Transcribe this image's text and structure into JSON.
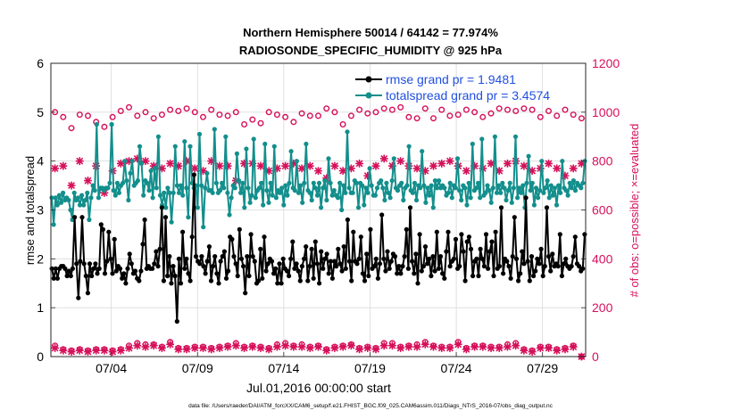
{
  "chart_data": {
    "type": "line",
    "title_line1": "Northern Hemisphere 50014 / 64142 = 77.974%",
    "title_line2": "RADIOSONDE_SPECIFIC_HUMIDITY @ 925 hPa",
    "xlabel": "Jul.01,2016 00:00:00 start",
    "ylabel_left": "rmse and totalspread",
    "ylabel_right": "# of obs: o=possible; ×=evaluated",
    "footer": "data file: /Users/raeder/DAI/ATM_forcXX/CAM6_setup/f.e21.FHIST_BGC.f09_025.CAM6assim.011/Diags_NTrS_2016-07/obs_diag_output.nc",
    "x_ticks": [
      {
        "day": 3.5,
        "label": "07/04"
      },
      {
        "day": 8.5,
        "label": "07/09"
      },
      {
        "day": 13.5,
        "label": "07/14"
      },
      {
        "day": 18.5,
        "label": "07/19"
      },
      {
        "day": 23.5,
        "label": "07/24"
      },
      {
        "day": 28.5,
        "label": "07/29"
      }
    ],
    "xlim": [
      0,
      31
    ],
    "ylim_left": [
      0,
      6
    ],
    "ylim_right": [
      0,
      1200
    ],
    "left_ticks": [
      "0",
      "1",
      "2",
      "3",
      "4",
      "5",
      "6"
    ],
    "right_ticks": [
      "0",
      "200",
      "400",
      "600",
      "800",
      "1000",
      "1200"
    ],
    "left_tick_values": [
      0,
      1,
      2,
      3,
      4,
      5,
      6
    ],
    "right_tick_values": [
      0,
      200,
      400,
      600,
      800,
      1000,
      1200
    ],
    "colors": {
      "rmse": "#000000",
      "spread": "#138f8c",
      "obs": "#d6105a",
      "legend_text": "#1f4fe0"
    },
    "series": [
      {
        "name": "rmse",
        "label": "rmse grand pr = 1.9481",
        "values": [
          1.8,
          1.6,
          1.8,
          1.6,
          1.8,
          1.85,
          1.85,
          1.8,
          1.65,
          1.75,
          1.65,
          1.8,
          2.85,
          1.9,
          1.2,
          1.95,
          2.85,
          1.9,
          1.65,
          1.3,
          1.9,
          1.65,
          1.8,
          1.9,
          1.7,
          1.8,
          2.7,
          2.6,
          1.7,
          1.95,
          2.55,
          2.0,
          1.7,
          2.4,
          1.75,
          1.85,
          1.8,
          1.6,
          1.7,
          1.5,
          1.8,
          2.1,
          1.9,
          1.7,
          1.75,
          1.6,
          1.55,
          1.75,
          2.3,
          2.8,
          1.8,
          1.85,
          1.8,
          1.8,
          1.9,
          2.15,
          1.85,
          2.2,
          3.05,
          1.55,
          2.85,
          1.65,
          2.05,
          1.5,
          1.85,
          1.65,
          0.72,
          2.0,
          1.5,
          2.55,
          1.8,
          2.0,
          1.7,
          1.55,
          2.45,
          3.72,
          2.05,
          1.95,
          1.9,
          2.05,
          1.85,
          1.7,
          1.95,
          2.25,
          1.55,
          1.85,
          2.05,
          1.7,
          1.5,
          1.95,
          2.05,
          2.15,
          1.6,
          1.75,
          2.45,
          2.4,
          2.05,
          1.9,
          1.65,
          2.6,
          2.0,
          1.85,
          1.3,
          2.05,
          1.65,
          2.5,
          2.05,
          1.95,
          1.5,
          1.55,
          2.2,
          1.6,
          2.45,
          1.75,
          1.9,
          2.0,
          1.95,
          1.7,
          1.8,
          1.5,
          1.9,
          1.5,
          2.0,
          1.8,
          1.75,
          1.65,
          2.0,
          2.35,
          1.8,
          1.9,
          1.75,
          1.55,
          1.85,
          2.0,
          2.25,
          1.55,
          1.85,
          2.2,
          1.6,
          2.35,
          1.9,
          1.5,
          2.15,
          1.8,
          2.0,
          2.1,
          1.7,
          1.95,
          1.6,
          1.95,
          1.85,
          2.2,
          1.9,
          1.75,
          2.25,
          1.8,
          2.8,
          1.95,
          1.55,
          2.55,
          1.95,
          1.9,
          2.0,
          2.45,
          1.7,
          1.55,
          2.1,
          1.65,
          2.6,
          1.8,
          1.85,
          2.0,
          1.6,
          1.9,
          2.9,
          2.0,
          1.75,
          2.15,
          1.8,
          1.95,
          2.1,
          2.05,
          1.7,
          1.85,
          1.7,
          1.85,
          2.05,
          2.6,
          1.8,
          3.05,
          1.95,
          1.7,
          2.1,
          1.5,
          2.5,
          1.75,
          1.85,
          2.25,
          1.9,
          2.0,
          1.65,
          2.05,
          1.75,
          2.55,
          1.8,
          2.05,
          1.7,
          1.6,
          2.15,
          2.55,
          1.85,
          1.95,
          2.0,
          2.4,
          1.8,
          1.85,
          2.5,
          2.15,
          1.55,
          2.35,
          2.45,
          2.2,
          1.65,
          1.95,
          2.0,
          1.65,
          2.2,
          2.0,
          1.85,
          2.5,
          1.8,
          2.15,
          2.35,
          1.65,
          2.55,
          1.8,
          1.85,
          3.05,
          1.7,
          2.0,
          1.95,
          1.85,
          1.6,
          2.05,
          2.85,
          2.0,
          1.55,
          1.7,
          2.15,
          1.9,
          3.25,
          1.95,
          1.55,
          2.05,
          1.65,
          1.75,
          2.0,
          1.9,
          2.2,
          1.65,
          1.85,
          3.05,
          2.05,
          1.75,
          2.1,
          1.85,
          1.9,
          1.85,
          2.5,
          1.65,
          1.9,
          2.0,
          1.85,
          1.8,
          1.85,
          2.05,
          2.45,
          1.9,
          1.85,
          1.75,
          1.8,
          2.5
        ]
      },
      {
        "name": "totalspread",
        "label": "totalspread grand pr = 3.4574",
        "values": [
          3.25,
          2.7,
          3.25,
          3.1,
          3.3,
          3.15,
          3.35,
          3.2,
          3.25,
          3.2,
          3.0,
          2.8,
          3.35,
          3.2,
          3.25,
          3.1,
          3.3,
          3.1,
          3.2,
          3.35,
          2.8,
          3.25,
          3.5,
          3.4,
          4.75,
          3.25,
          3.45,
          3.45,
          3.4,
          3.45,
          3.45,
          3.55,
          4.75,
          3.4,
          3.3,
          3.55,
          3.35,
          3.5,
          3.55,
          4.0,
          3.6,
          3.2,
          3.75,
          4.0,
          3.5,
          3.55,
          3.6,
          4.3,
          3.95,
          3.3,
          3.6,
          3.55,
          3.4,
          3.8,
          3.25,
          3.85,
          3.45,
          4.5,
          3.3,
          3.1,
          3.35,
          3.05,
          3.45,
          3.35,
          2.75,
          3.35,
          4.3,
          3.5,
          3.35,
          3.5,
          3.3,
          4.4,
          3.45,
          2.85,
          4.3,
          3.55,
          3.45,
          3.5,
          3.05,
          4.55,
          3.5,
          2.65,
          3.45,
          3.75,
          3.4,
          3.4,
          3.35,
          4.65,
          3.55,
          3.35,
          3.4,
          3.55,
          3.45,
          4.5,
          3.35,
          2.9,
          3.25,
          3.5,
          3.45,
          4.15,
          3.6,
          3.35,
          3.55,
          3.05,
          4.25,
          3.45,
          3.15,
          3.3,
          4.45,
          3.25,
          3.4,
          3.45,
          3.55,
          3.1,
          4.35,
          3.4,
          3.15,
          3.55,
          3.3,
          4.3,
          3.25,
          3.4,
          3.35,
          3.45,
          3.1,
          3.5,
          3.3,
          3.55,
          4.2,
          3.45,
          3.4,
          4.0,
          3.35,
          3.5,
          3.15,
          3.55,
          4.35,
          3.4,
          3.35,
          3.2,
          3.55,
          3.45,
          3.3,
          3.55,
          3.05,
          3.45,
          3.6,
          3.2,
          4.05,
          3.55,
          3.3,
          3.4,
          3.3,
          3.25,
          3.55,
          3.0,
          3.5,
          3.35,
          4.6,
          3.45,
          3.35,
          3.35,
          3.6,
          3.55,
          3.05,
          3.55,
          3.5,
          3.1,
          3.45,
          3.35,
          3.85,
          3.5,
          3.3,
          3.3,
          3.45,
          3.55,
          3.6,
          3.45,
          3.2,
          3.55,
          3.35,
          3.25,
          3.6,
          4.05,
          3.45,
          3.4,
          3.5,
          3.55,
          3.2,
          3.45,
          3.5,
          4.3,
          3.4,
          3.35,
          3.55,
          3.2,
          3.5,
          3.45,
          4.2,
          3.5,
          3.15,
          3.45,
          3.3,
          3.5,
          3.05,
          3.6,
          3.45,
          3.6,
          3.45,
          3.5,
          3.45,
          3.3,
          3.35,
          3.55,
          3.25,
          3.5,
          3.45,
          4.05,
          3.4,
          3.2,
          3.5,
          3.45,
          3.1,
          3.55,
          3.25,
          4.35,
          3.4,
          3.45,
          3.55,
          3.25,
          4.45,
          3.3,
          3.35,
          3.5,
          3.4,
          3.15,
          3.45,
          4.5,
          3.35,
          3.5,
          3.35,
          3.55,
          3.45,
          3.2,
          3.4,
          3.55,
          3.15,
          3.45,
          4.5,
          3.25,
          3.45,
          3.35,
          3.5,
          3.05,
          3.55,
          4.1,
          3.4,
          3.55,
          3.1,
          3.45,
          3.25,
          3.4,
          4.0,
          3.35,
          3.45,
          3.6,
          3.25,
          3.5,
          3.3,
          3.45,
          3.1,
          3.5,
          3.35,
          4.0,
          3.45,
          3.4,
          3.3,
          3.55,
          3.45,
          3.6,
          3.4,
          3.55,
          3.5,
          3.45,
          3.55,
          4.0
        ]
      },
      {
        "name": "obs_possible",
        "values": [
          1000,
          980,
          935,
          990,
          985,
          960,
          940,
          980,
          1005,
          1020,
          985,
          1000,
          975,
          990,
          1010,
          1005,
          1015,
          1000,
          980,
          1010,
          990,
          985,
          1000,
          950,
          970,
          955,
          1000,
          990,
          980,
          960,
          995,
          985,
          985,
          1015,
          1000,
          950,
          985,
          1010,
          995,
          1000,
          1015,
          1010,
          1020,
          980,
          975,
          1015,
          975,
          1010,
          985,
          990,
          1010,
          1000,
          980,
          995,
          1015,
          1010,
          1005,
          1015,
          1010,
          980,
          1005,
          985,
          1010,
          990,
          975
        ]
      },
      {
        "name": "obs_evaluated",
        "values": [
          770,
          780,
          700,
          800,
          720,
          780,
          670,
          760,
          790,
          800,
          810,
          800,
          780,
          770,
          790,
          780,
          800,
          770,
          760,
          800,
          780,
          780,
          720,
          790,
          790,
          780,
          760,
          770,
          780,
          790,
          770,
          780,
          760,
          730,
          780,
          760,
          770,
          790,
          740,
          780,
          810,
          780,
          800,
          780,
          770,
          760,
          780,
          790,
          800,
          780,
          760,
          780,
          770,
          790,
          760,
          790,
          800,
          780,
          760,
          770,
          790,
          770,
          740,
          770,
          790
        ]
      },
      {
        "name": "obs_possible_low",
        "values": [
          45,
          30,
          25,
          30,
          25,
          30,
          30,
          25,
          30,
          45,
          55,
          50,
          50,
          40,
          60,
          35,
          35,
          40,
          40,
          35,
          40,
          45,
          55,
          40,
          45,
          40,
          35,
          50,
          55,
          45,
          50,
          40,
          45,
          30,
          40,
          45,
          50,
          35,
          40,
          35,
          55,
          55,
          40,
          45,
          50,
          60,
          45,
          40,
          40,
          60,
          35,
          45,
          45,
          40,
          40,
          50,
          55,
          30,
          25,
          40,
          40,
          30,
          35,
          45,
          0
        ]
      },
      {
        "name": "obs_evaluated_low",
        "values": [
          35,
          25,
          20,
          25,
          20,
          25,
          25,
          20,
          25,
          35,
          45,
          40,
          45,
          35,
          50,
          30,
          30,
          35,
          35,
          30,
          35,
          40,
          45,
          35,
          40,
          35,
          30,
          40,
          45,
          40,
          40,
          35,
          40,
          25,
          35,
          40,
          45,
          30,
          35,
          30,
          45,
          45,
          35,
          40,
          40,
          50,
          40,
          35,
          35,
          50,
          30,
          40,
          40,
          35,
          35,
          40,
          45,
          25,
          20,
          35,
          35,
          25,
          30,
          40,
          0
        ]
      }
    ]
  }
}
